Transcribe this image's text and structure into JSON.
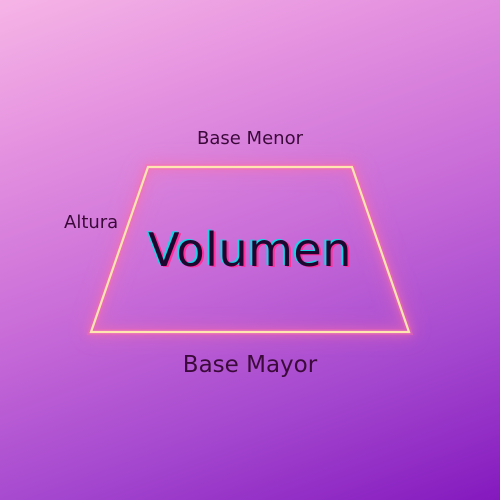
{
  "diagram": {
    "shape": "trapezoid",
    "labels": {
      "base_menor": "Base Menor",
      "altura": "Altura",
      "base_mayor": "Base Mayor",
      "title": "Volumen"
    },
    "colors": {
      "outline": "#ffe6b0",
      "glow": "#ff6fa6",
      "text": "#3b0a3a",
      "title_shadow_cyan": "#19d3e4",
      "title_shadow_pink": "#ff2f9b"
    }
  }
}
